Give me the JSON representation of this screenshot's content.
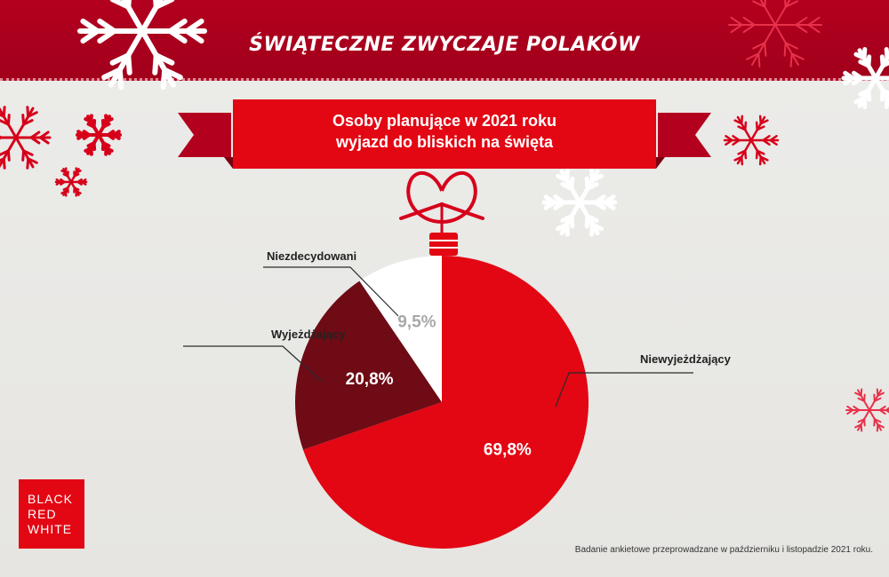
{
  "header": {
    "title": "ŚWIĄTECZNE ZWYCZAJE POLAKÓW"
  },
  "ribbon": {
    "line1": "Osoby planujące w 2021 roku",
    "line2": "wyjazd do bliskich na święta"
  },
  "colors": {
    "brand_red": "#b3001f",
    "slice_main": "#e30613",
    "slice_dark": "#6e0b15",
    "slice_white": "#ffffff",
    "value_gray": "#a8a8a8"
  },
  "chart_data": {
    "type": "pie",
    "title": "Osoby planujące w 2021 roku wyjazd do bliskich na święta",
    "slices": [
      {
        "label": "Niewyjeżdżający",
        "value": 69.8,
        "display": "69,8%",
        "color": "#e30613"
      },
      {
        "label": "Wyjeżdżający",
        "value": 20.8,
        "display": "20,8%",
        "color": "#6e0b15"
      },
      {
        "label": "Niezdecydowani",
        "value": 9.5,
        "display": "9,5%",
        "color": "#ffffff"
      }
    ],
    "start": "top",
    "direction": "clockwise"
  },
  "logo": {
    "lines": [
      "BLACK",
      "RED",
      "WHITE"
    ]
  },
  "footnote": "Badanie ankietowe przeprowadzane w październiku i listopadzie 2021 roku."
}
